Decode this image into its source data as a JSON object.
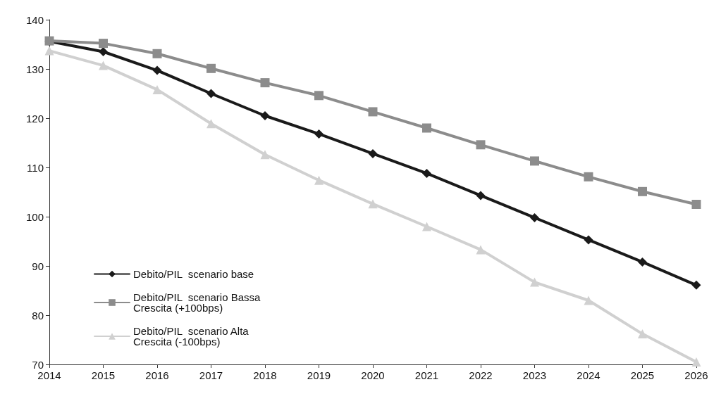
{
  "chart_data": {
    "type": "line",
    "categories": [
      "2014",
      "2015",
      "2016",
      "2017",
      "2018",
      "2019",
      "2020",
      "2021",
      "2022",
      "2023",
      "2024",
      "2025",
      "2026"
    ],
    "series": [
      {
        "name": "Debito/PIL  scenario base",
        "color": "#1a1a1a",
        "marker": "diamond",
        "values": [
          135.6,
          133.5,
          129.7,
          125,
          120.5,
          116.8,
          112.8,
          108.8,
          104.3,
          99.8,
          95.3,
          90.8,
          86.1
        ]
      },
      {
        "name": "Debito/PIL  scenario Bassa\nCrescita (+100bps)",
        "color": "#8c8c8c",
        "marker": "square",
        "values": [
          135.7,
          135.2,
          133.1,
          130.1,
          127.2,
          124.6,
          121.3,
          118,
          114.6,
          111.3,
          108.1,
          105.1,
          102.5
        ]
      },
      {
        "name": "Debito/PIL  scenario Alta\nCrescita (-100bps)",
        "color": "#d0d0d0",
        "marker": "triangle",
        "values": [
          133.7,
          130.7,
          125.8,
          118.9,
          112.6,
          107.4,
          102.6,
          98,
          93.3,
          86.7,
          83,
          76.2,
          70.5
        ]
      }
    ],
    "ylim": [
      70,
      140
    ],
    "yticks": [
      70,
      80,
      90,
      100,
      110,
      120,
      130,
      140
    ],
    "grid": false,
    "legend": "bottom left",
    "line_style": "solid"
  }
}
